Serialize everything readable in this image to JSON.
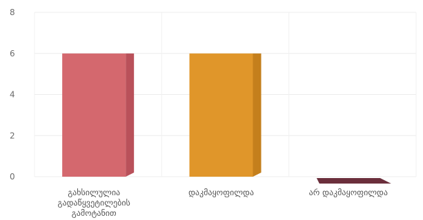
{
  "chart_data": {
    "type": "bar",
    "categories": [
      "გახსილულია გადაწყვეტილების გამოტანით",
      "დაკმაყოფილდა",
      "არ დაკმაყოფილდა"
    ],
    "category_lines": [
      [
        "გახსილულია",
        "გადაწყვეტილების",
        "გამოტანით"
      ],
      [
        "დაკმაყოფილდა"
      ],
      [
        "არ დაკმაყოფილდა"
      ]
    ],
    "values": [
      6,
      6,
      0
    ],
    "bar_colors": [
      "#d4686e",
      "#e0962a",
      "#6b2f3c"
    ],
    "bar_side_colors": [
      "#b9515a",
      "#c47f1c",
      "#4f1f2b"
    ],
    "ylim": [
      0,
      8
    ],
    "yticks": [
      0,
      2,
      4,
      6,
      8
    ],
    "grid": true,
    "legend": "none"
  }
}
